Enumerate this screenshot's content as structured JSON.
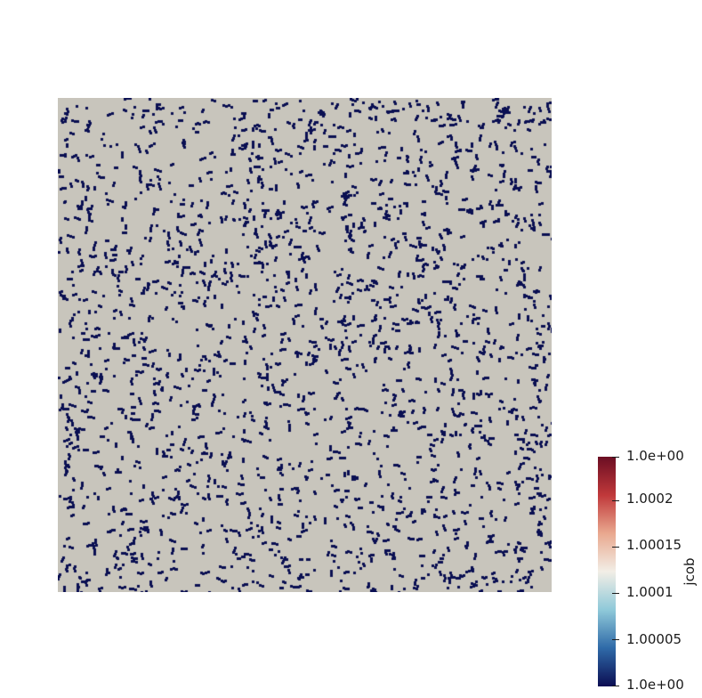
{
  "scene": {
    "background": "#ffffff",
    "field_color": "#c8c5bc",
    "speck_color": "#0a0f52",
    "pattern": "random dense specks"
  },
  "colorbar": {
    "title": "jcob",
    "gradient_colors": [
      "#0b0d52",
      "#2f6aa8",
      "#8fc9d9",
      "#f2eee6",
      "#e9a88f",
      "#c0383a",
      "#6b0e23"
    ],
    "labels": [
      {
        "text": "1.0e+00",
        "position": "top"
      },
      {
        "text": "1.0002"
      },
      {
        "text": "1.00015"
      },
      {
        "text": "1.0001"
      },
      {
        "text": "1.00005"
      },
      {
        "text": "1.0e+00",
        "position": "bottom"
      }
    ]
  }
}
